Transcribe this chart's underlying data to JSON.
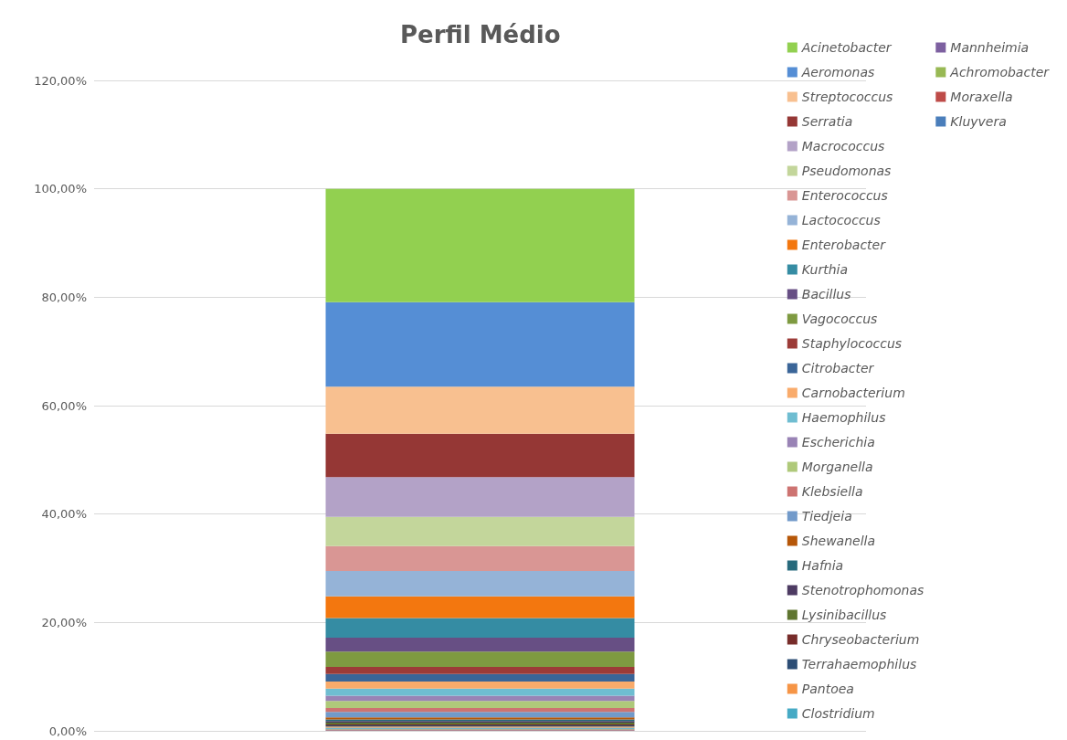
{
  "chart_data": {
    "type": "bar",
    "title": "Perfil Médio",
    "stacked": true,
    "categories": [
      null
    ],
    "ylim": [
      0,
      120
    ],
    "yticks": [
      {
        "value": 0,
        "label": "0,00%"
      },
      {
        "value": 20,
        "label": "20,00%"
      },
      {
        "value": 40,
        "label": "40,00%"
      },
      {
        "value": 60,
        "label": "60,00%"
      },
      {
        "value": 80,
        "label": "80,00%"
      },
      {
        "value": 100,
        "label": "100,00%"
      },
      {
        "value": 120,
        "label": "120,00%"
      }
    ],
    "grid": "y",
    "legend": "right",
    "series": [
      {
        "name": "Kluyvera",
        "color": "#4a7ebb",
        "values": [
          0.1
        ]
      },
      {
        "name": "Moraxella",
        "color": "#be4b48",
        "values": [
          0.1
        ]
      },
      {
        "name": "Achromobacter",
        "color": "#98b954",
        "values": [
          0.1
        ]
      },
      {
        "name": "Mannheimia",
        "color": "#7d60a0",
        "values": [
          0.1
        ]
      },
      {
        "name": "Clostridium",
        "color": "#46aac5",
        "values": [
          0.2
        ]
      },
      {
        "name": "Pantoea",
        "color": "#f69546",
        "values": [
          0.2
        ]
      },
      {
        "name": "Terrahaemophilus",
        "color": "#2c4d75",
        "values": [
          0.2
        ]
      },
      {
        "name": "Chryseobacterium",
        "color": "#772c2a",
        "values": [
          0.2
        ]
      },
      {
        "name": "Lysinibacillus",
        "color": "#5f7530",
        "values": [
          0.3
        ]
      },
      {
        "name": "Stenotrophomonas",
        "color": "#4d3b62",
        "values": [
          0.3
        ]
      },
      {
        "name": "Hafnia",
        "color": "#276a7c",
        "values": [
          0.3
        ]
      },
      {
        "name": "Shewanella",
        "color": "#b65708",
        "values": [
          0.4
        ]
      },
      {
        "name": "Tiedjeia",
        "color": "#729aca",
        "values": [
          1.0
        ]
      },
      {
        "name": "Klebsiella",
        "color": "#cd7371",
        "values": [
          0.7
        ]
      },
      {
        "name": "Morganella",
        "color": "#afc97a",
        "values": [
          1.3
        ]
      },
      {
        "name": "Escherichia",
        "color": "#9983b5",
        "values": [
          1.0
        ]
      },
      {
        "name": "Haemophilus",
        "color": "#6fbdd1",
        "values": [
          1.3
        ]
      },
      {
        "name": "Carnobacterium",
        "color": "#f9ab6b",
        "values": [
          1.3
        ]
      },
      {
        "name": "Citrobacter",
        "color": "#3a6598",
        "values": [
          1.4
        ]
      },
      {
        "name": "Staphylococcus",
        "color": "#9c3b38",
        "values": [
          1.3
        ]
      },
      {
        "name": "Vagococcus",
        "color": "#7e9a41",
        "values": [
          2.8
        ]
      },
      {
        "name": "Bacillus",
        "color": "#674f84",
        "values": [
          2.6
        ]
      },
      {
        "name": "Kurthia",
        "color": "#358ca3",
        "values": [
          3.6
        ]
      },
      {
        "name": "Enterobacter",
        "color": "#f3770f",
        "values": [
          4.0
        ]
      },
      {
        "name": "Lactococcus",
        "color": "#95b3d7",
        "values": [
          4.7
        ]
      },
      {
        "name": "Enterococcus",
        "color": "#d99694",
        "values": [
          4.6
        ]
      },
      {
        "name": "Pseudomonas",
        "color": "#c3d69b",
        "values": [
          5.4
        ]
      },
      {
        "name": "Macrococcus",
        "color": "#b3a2c7",
        "values": [
          7.3
        ]
      },
      {
        "name": "Serratia",
        "color": "#953735",
        "values": [
          8.0
        ]
      },
      {
        "name": "Streptococcus",
        "color": "#f8c090",
        "values": [
          8.7
        ]
      },
      {
        "name": "Aeromonas",
        "color": "#558ed5",
        "values": [
          15.6
        ]
      },
      {
        "name": "Acinetobacter",
        "color": "#92d050",
        "values": [
          20.9
        ]
      }
    ]
  }
}
